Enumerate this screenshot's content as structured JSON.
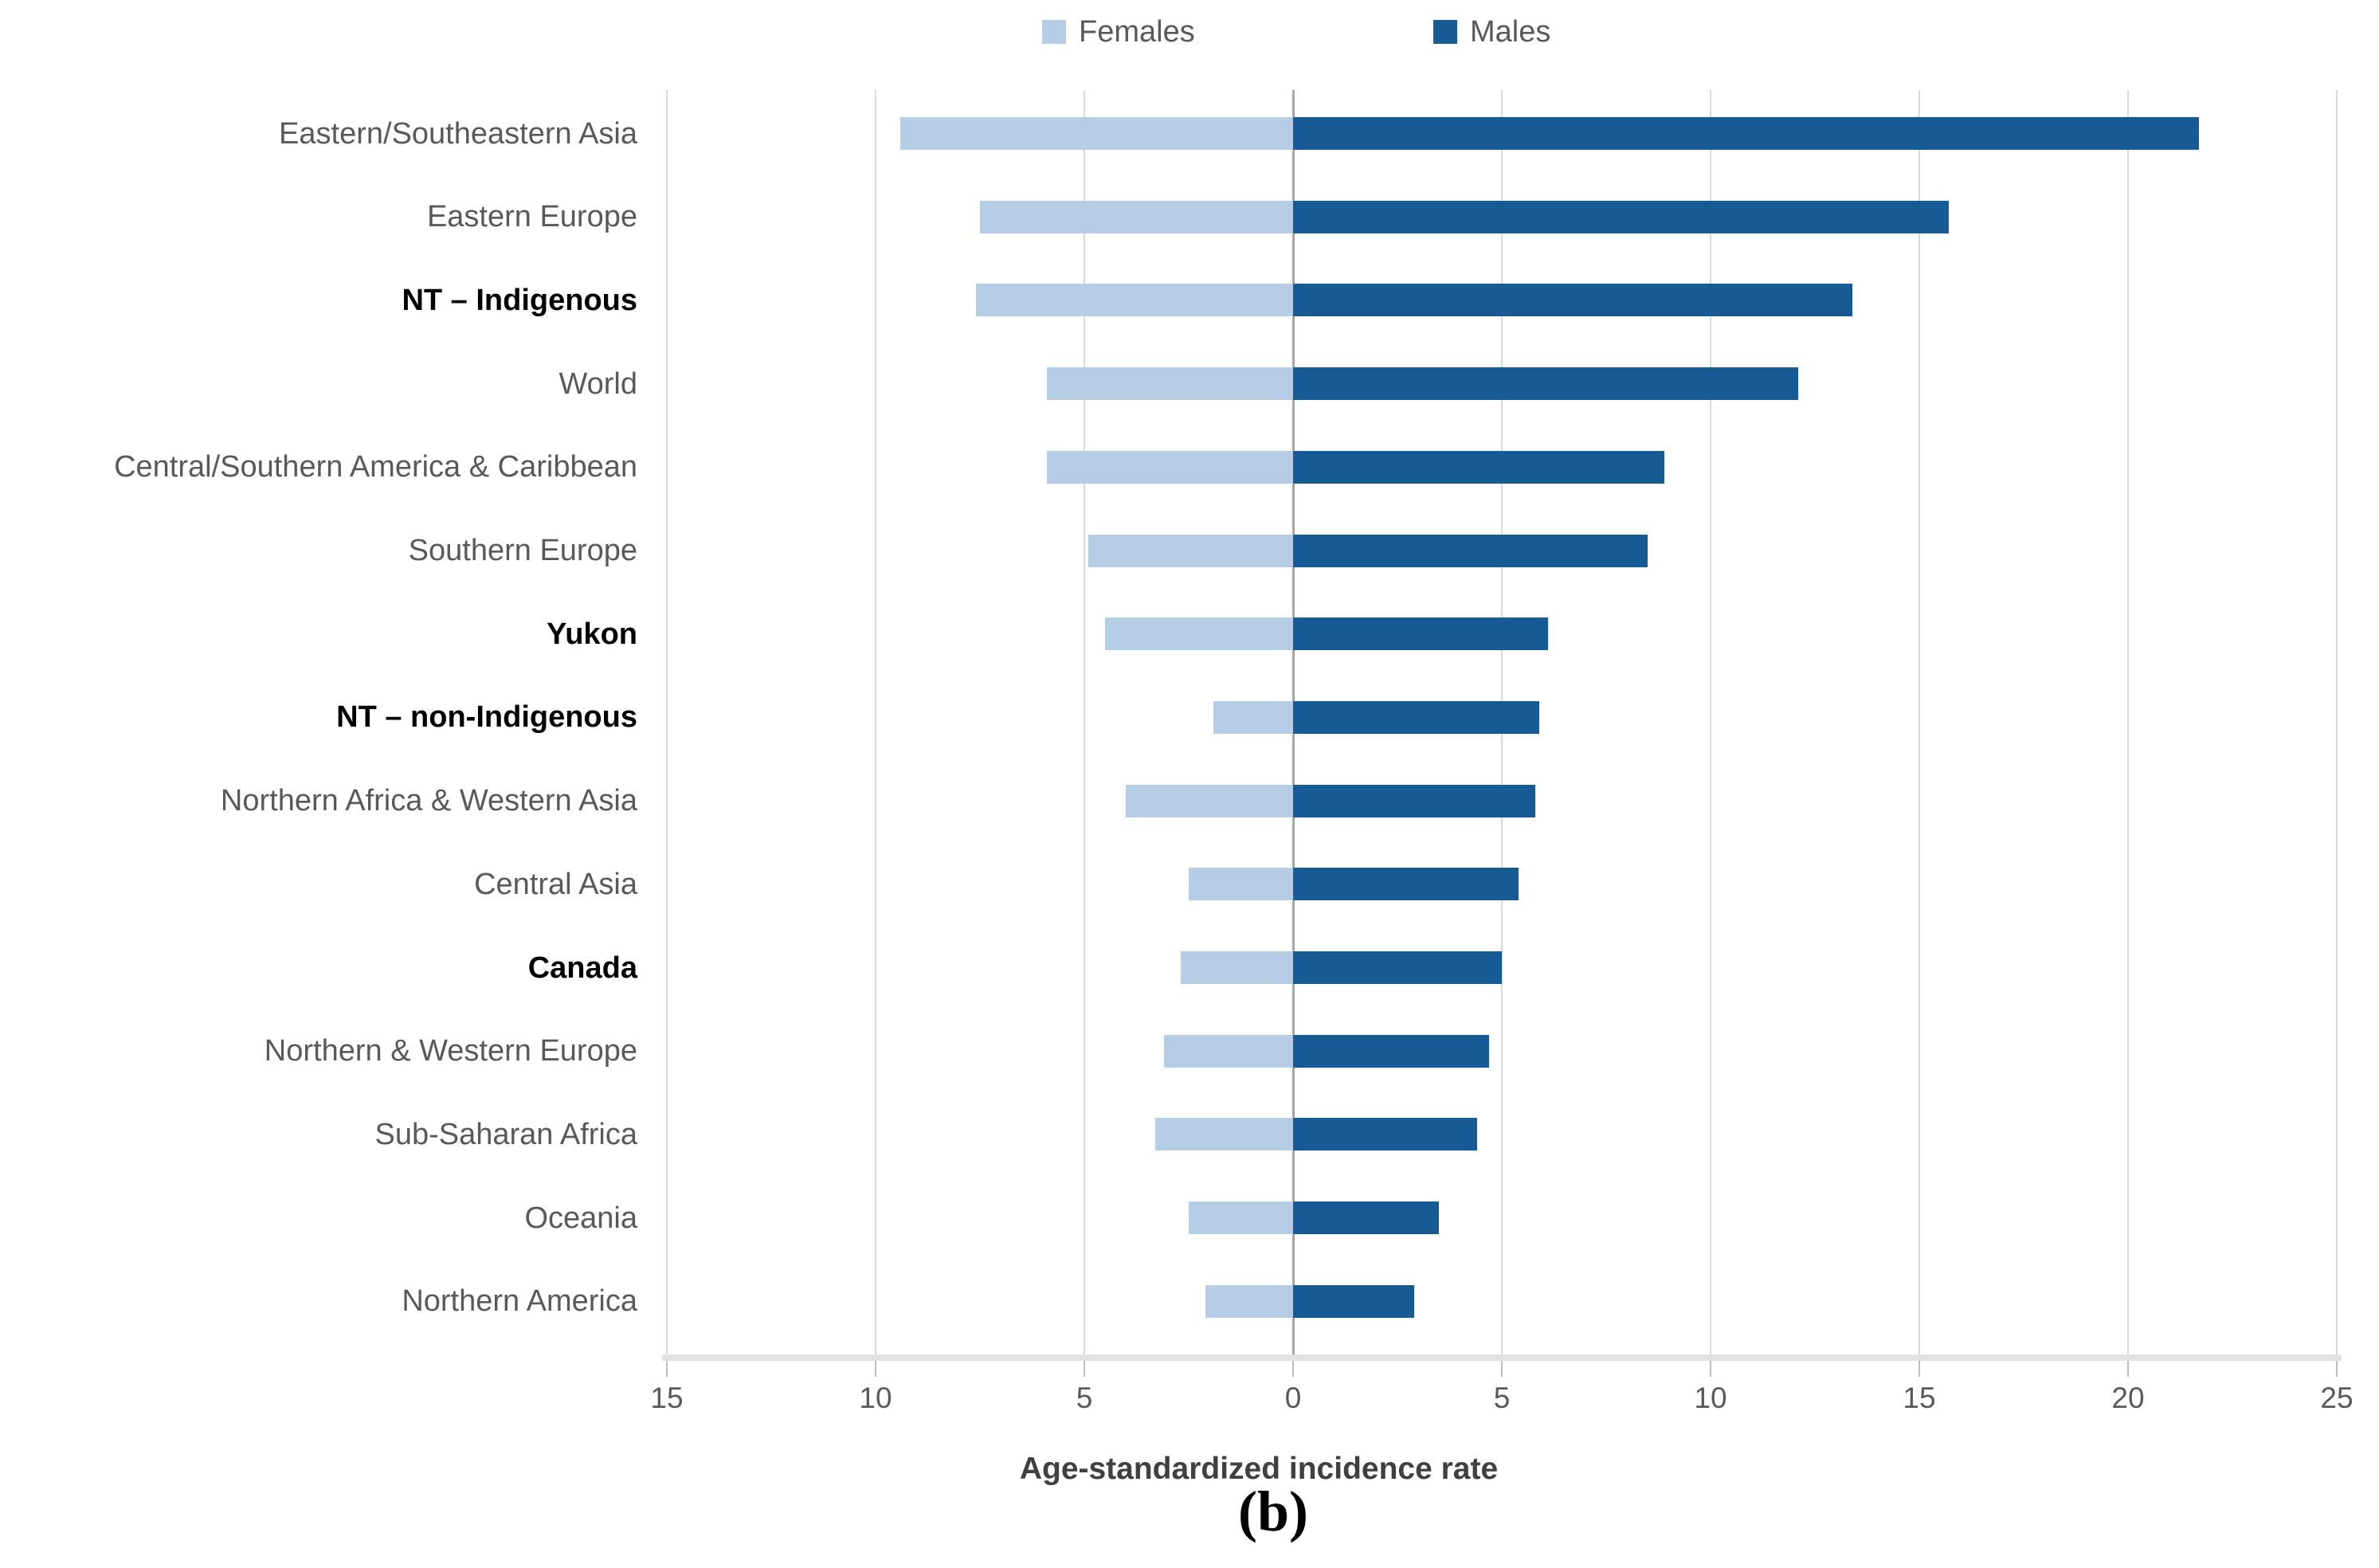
{
  "legend": {
    "females_label": "Females",
    "males_label": "Males"
  },
  "caption": "(b)",
  "colors": {
    "female_bar": "#B5CDE5",
    "male_bar": "#165B96",
    "gridline": "#D9D9D9",
    "zero_line": "#A6A6A6",
    "label_gray": "#595959",
    "label_bold_black": "#000000",
    "axis_title_gray": "#404040"
  },
  "chart_data": {
    "type": "bar",
    "variant": "diverging-horizontal-tornado",
    "title": "",
    "xlabel": "Age-standardized incidence rate",
    "ylabel": "",
    "legend_position": "top-center",
    "grid": true,
    "x_axis": {
      "range": [
        -15,
        25
      ],
      "tick_values": [
        -15,
        -10,
        -5,
        0,
        5,
        10,
        15,
        20,
        25
      ],
      "tick_labels": [
        "15",
        "10",
        "5",
        "0",
        "5",
        "10",
        "15",
        "20",
        "25"
      ],
      "note": "left side = Females magnitude, right side = Males magnitude"
    },
    "categories": [
      "Eastern/Southeastern Asia",
      "Eastern Europe",
      "NT – Indigenous",
      "World",
      "Central/Southern America & Caribbean",
      "Southern Europe",
      "Yukon",
      "NT – non-Indigenous",
      "Northern Africa & Western Asia",
      "Central Asia",
      "Canada",
      "Northern & Western Europe",
      "Sub-Saharan Africa",
      "Oceania",
      "Northern America"
    ],
    "bold_categories": [
      "NT – Indigenous",
      "Yukon",
      "NT – non-Indigenous",
      "Canada"
    ],
    "series": [
      {
        "name": "Females",
        "direction": "left",
        "values": [
          9.4,
          7.5,
          7.6,
          5.9,
          5.9,
          4.9,
          4.5,
          1.9,
          4.0,
          2.5,
          2.7,
          3.1,
          3.3,
          2.5,
          2.1
        ]
      },
      {
        "name": "Males",
        "direction": "right",
        "values": [
          21.7,
          15.7,
          13.4,
          12.1,
          8.9,
          8.5,
          6.1,
          5.9,
          5.8,
          5.4,
          5.0,
          4.7,
          4.4,
          3.5,
          2.9
        ]
      }
    ]
  }
}
